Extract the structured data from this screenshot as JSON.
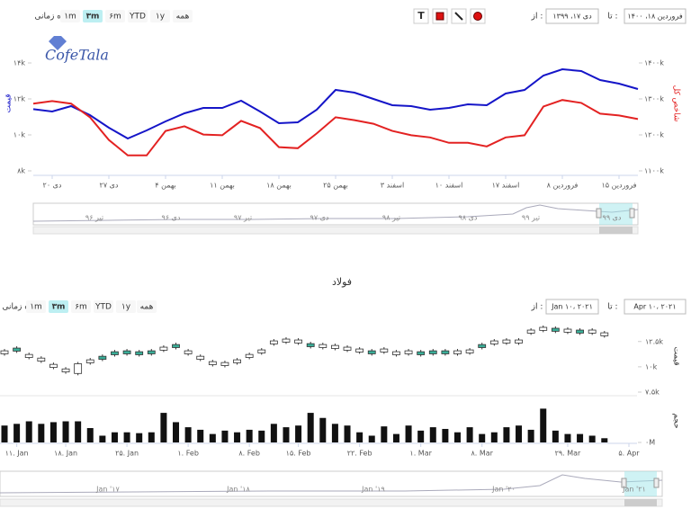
{
  "logo": "CofeTala",
  "toolbars": [
    {
      "range_label": "بازه زمانی",
      "buttons": [
        "۱m",
        "۳m",
        "۶m",
        "YTD",
        "۱y",
        "همه"
      ],
      "active": 1,
      "tools_text": "T",
      "from_label": "از :",
      "from": "دی ۱۷، ۱۳۹۹",
      "to_label": "تا :",
      "to": "فروردین ۱۸، ۱۴۰۰"
    },
    {
      "range_label": "بازه زمانی",
      "buttons": [
        "۱m",
        "۳m",
        "۶m",
        "YTD",
        "۱y",
        "همه"
      ],
      "active": 1,
      "from_label": "از :",
      "from": "Jan ۱۰، ۲۰۲۱",
      "to_label": "تا :",
      "to": "Apr ۱۰، ۲۰۲۱"
    }
  ],
  "navigators": [
    {
      "labels": [
        "تیر ۹۶",
        "دی ۹۶",
        "تیر ۹۷",
        "دی ۹۷",
        "تیر ۹۸",
        "دی ۹۸",
        "تیر ۹۹",
        "دی ۹۹"
      ]
    },
    {
      "labels": [
        "Jan '۱۷",
        "Jan '۱۸",
        "Jan '۱۹",
        "Jan '۲۰",
        "Jan '۲۱"
      ]
    }
  ],
  "chart_data": [
    {
      "type": "line",
      "categories": [
        null,
        "دی ۲۰",
        null,
        null,
        "دی ۲۷",
        null,
        null,
        "بهمن ۴",
        null,
        null,
        "بهمن ۱۱",
        null,
        null,
        "بهمن ۱۸",
        null,
        null,
        "بهمن ۲۵",
        null,
        null,
        "اسفند ۳",
        null,
        null,
        "اسفند ۱۰",
        null,
        null,
        "اسفند ۱۷",
        null,
        null,
        "فروردین ۸",
        null,
        null,
        "فروردین ۱۵",
        null
      ],
      "series": [
        {
          "name": "قیمت",
          "color": "#1515c8",
          "values": [
            11430,
            11300,
            11600,
            11100,
            10400,
            9800,
            10250,
            10750,
            11200,
            11500,
            11500,
            11900,
            11300,
            10650,
            10700,
            11400,
            12500,
            12350,
            12000,
            11650,
            11600,
            11400,
            11500,
            11700,
            11650,
            12300,
            12500,
            13300,
            13650,
            13550,
            13050,
            12850,
            12550
          ]
        },
        {
          "name": "شاخص کل",
          "color": "#e32222",
          "axis": "y2",
          "values": [
            1287000,
            1294000,
            1287000,
            1249000,
            1186000,
            1143000,
            1143000,
            1211000,
            1224000,
            1201000,
            1199000,
            1239000,
            1219000,
            1166000,
            1163000,
            1204000,
            1249000,
            1241000,
            1231000,
            1211000,
            1199000,
            1193000,
            1178000,
            1178000,
            1168000,
            1193000,
            1199000,
            1279000,
            1297000,
            1289000,
            1259000,
            1254000,
            1244000
          ]
        }
      ],
      "ylim": [
        8000,
        15500
      ],
      "yticks": [
        {
          "value": 8000,
          "label": "۸k"
        },
        {
          "value": 10000,
          "label": "۱۰k"
        },
        {
          "value": 12000,
          "label": "۱۲k"
        },
        {
          "value": 14000,
          "label": "۱۴k"
        }
      ],
      "y2lim": [
        1100000,
        1475000
      ],
      "y2ticks": [
        {
          "value": 1100000,
          "label": "۱۱۰۰k"
        },
        {
          "value": 1200000,
          "label": "۱۲۰۰k"
        },
        {
          "value": 1300000,
          "label": "۱۳۰۰k"
        },
        {
          "value": 1400000,
          "label": "۱۴۰۰k"
        }
      ],
      "grid": false
    },
    {
      "type": "candlestick",
      "title": "فولاد",
      "ylabel": "قیمت",
      "up_color": "#3aae98",
      "down_color": "#ffffff",
      "open": [
        11580,
        11550,
        11220,
        10860,
        10240,
        9790,
        10300,
        10690,
        10740,
        11190,
        11280,
        11190,
        11280,
        11940,
        11900,
        11580,
        11040,
        10510,
        10420,
        10690,
        11220,
        11670,
        12560,
        12740,
        12650,
        11990,
        12200,
        12110,
        11940,
        11760,
        11280,
        11760,
        11490,
        11580,
        11190,
        11280,
        11280,
        11580,
        11670,
        11900,
        12560,
        12650,
        12650,
        13630,
        13900,
        13510,
        13720,
        13330,
        13630,
        13360,
        null,
        null
      ],
      "close": [
        11280,
        11850,
        10920,
        10560,
        9940,
        9490,
        9340,
        10390,
        11040,
        11490,
        11580,
        11490,
        11580,
        11640,
        12200,
        11280,
        10740,
        10210,
        10120,
        10390,
        10920,
        11370,
        12260,
        12440,
        12350,
        12290,
        11900,
        11810,
        11640,
        11460,
        11580,
        11460,
        11190,
        11280,
        11490,
        11580,
        11580,
        11280,
        11370,
        12200,
        12260,
        12350,
        12350,
        13330,
        13600,
        13810,
        13420,
        13630,
        13330,
        13060,
        null,
        null
      ],
      "ylim": [
        7500,
        14700
      ],
      "yticks": [
        {
          "value": 7500,
          "label": "۷.۵k"
        },
        {
          "value": 10000,
          "label": "۱۰k"
        },
        {
          "value": 12500,
          "label": "۱۲.۵k"
        }
      ],
      "grid": false
    },
    {
      "type": "bar",
      "ylabel": "حجم",
      "color": "#111111",
      "categories": [
        null,
        "۱۱. Jan",
        null,
        null,
        null,
        "۱۸. Jan",
        null,
        null,
        null,
        null,
        "۲۵. Jan",
        null,
        null,
        null,
        null,
        "۱. Feb",
        null,
        null,
        null,
        null,
        "۸. Feb",
        null,
        null,
        null,
        "۱۵. Feb",
        null,
        null,
        null,
        null,
        "۲۲. Feb",
        null,
        null,
        null,
        null,
        "۱. Mar",
        null,
        null,
        null,
        null,
        "۸. Mar",
        null,
        null,
        null,
        null,
        null,
        null,
        "۲۹. Mar",
        null,
        null,
        null,
        null,
        "۵. Apr"
      ],
      "values": [
        20000000,
        22000000,
        25000000,
        22000000,
        24000000,
        25000000,
        25000000,
        17000000,
        8000000,
        12000000,
        12000000,
        11000000,
        12000000,
        35000000,
        24000000,
        18000000,
        15000000,
        10000000,
        14000000,
        12000000,
        15000000,
        14000000,
        22000000,
        18000000,
        20000000,
        35000000,
        29000000,
        22000000,
        20000000,
        12000000,
        8000000,
        19000000,
        10000000,
        20000000,
        14000000,
        18000000,
        16000000,
        12000000,
        18000000,
        10000000,
        12000000,
        18000000,
        20000000,
        15000000,
        40000000,
        14000000,
        10000000,
        10000000,
        8000000,
        5000000,
        null,
        null
      ],
      "ylim": [
        0,
        50000000
      ],
      "yticks": [
        {
          "value": 0,
          "label": "۰M"
        }
      ],
      "grid": false
    }
  ]
}
